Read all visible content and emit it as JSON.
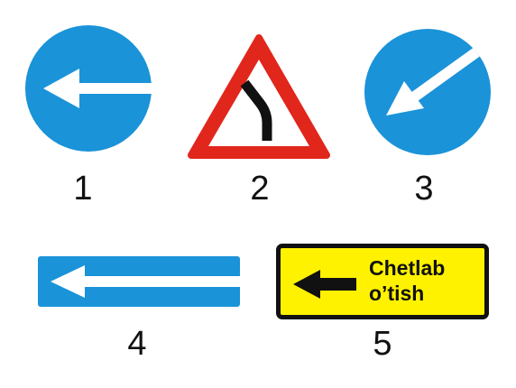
{
  "signs": [
    {
      "number": "1",
      "icon": "arrow-left-icon",
      "shape": "blue-circle"
    },
    {
      "number": "2",
      "icon": "curve-right-icon",
      "shape": "red-triangle"
    },
    {
      "number": "3",
      "icon": "arrow-down-left-icon",
      "shape": "blue-circle"
    },
    {
      "number": "4",
      "icon": "arrow-left-icon",
      "shape": "blue-rectangle"
    },
    {
      "number": "5",
      "icon": "arrow-left-icon",
      "shape": "yellow-rectangle",
      "text_line1": "Chetlab",
      "text_line2": "o’tish"
    }
  ],
  "colors": {
    "blue": "#1a93d8",
    "red": "#e1261c",
    "yellow": "#fff200",
    "black": "#111111",
    "white": "#ffffff"
  }
}
